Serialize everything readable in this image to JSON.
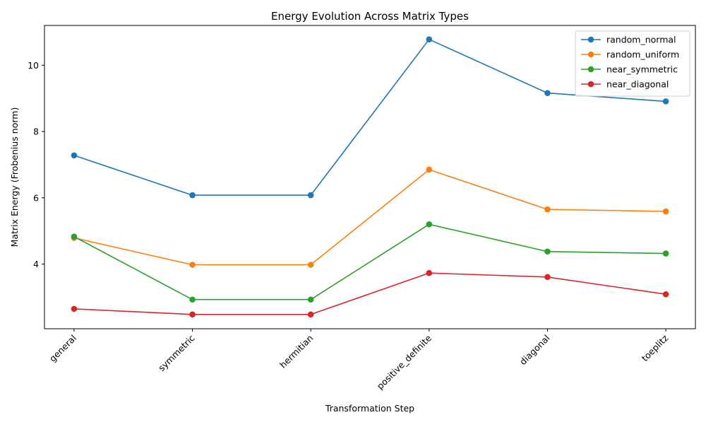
{
  "chart_data": {
    "type": "line",
    "title": "Energy Evolution Across Matrix Types",
    "xlabel": "Transformation Step",
    "ylabel": "Matrix Energy (Frobenius norm)",
    "categories": [
      "general",
      "symmetric",
      "hermitian",
      "positive_definite",
      "diagonal",
      "toeplitz"
    ],
    "ylim": [
      2.05,
      11.2
    ],
    "yticks": [
      4,
      6,
      8,
      10
    ],
    "grid": false,
    "legend_position": "top-right",
    "series": [
      {
        "name": "random_normal",
        "color": "#1f77b4",
        "values": [
          7.28,
          6.08,
          6.08,
          10.78,
          9.16,
          8.91
        ]
      },
      {
        "name": "random_uniform",
        "color": "#ff7f0e",
        "values": [
          4.79,
          3.98,
          3.98,
          6.85,
          5.65,
          5.59
        ]
      },
      {
        "name": "near_symmetric",
        "color": "#2ca02c",
        "values": [
          4.83,
          2.93,
          2.93,
          5.2,
          4.38,
          4.32
        ]
      },
      {
        "name": "near_diagonal",
        "color": "#d62728",
        "values": [
          2.65,
          2.48,
          2.48,
          3.73,
          3.61,
          3.09
        ]
      }
    ]
  }
}
